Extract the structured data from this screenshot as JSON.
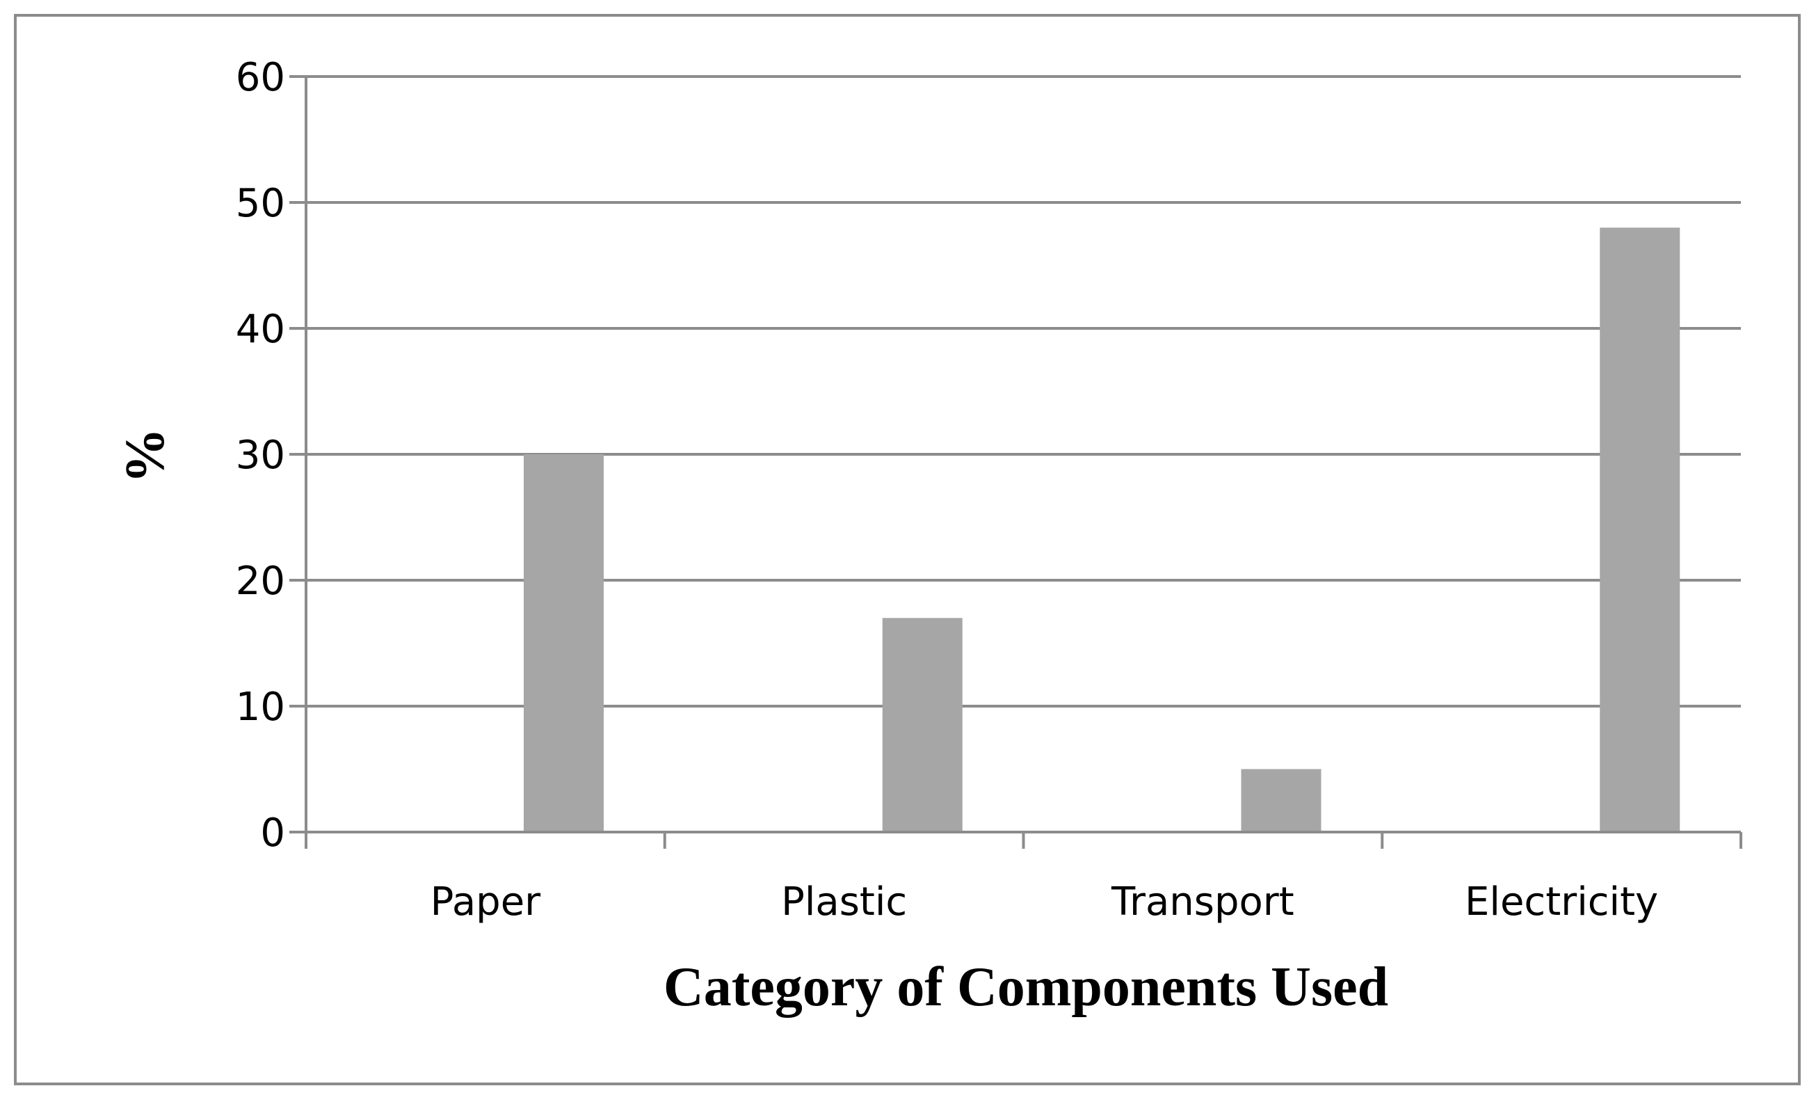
{
  "chart_data": {
    "type": "bar",
    "title": "",
    "xlabel": "Category of Components Used",
    "ylabel": "%",
    "categories": [
      "Paper",
      "Plastic",
      "Transport",
      "Electricity"
    ],
    "series": [
      {
        "values": [
          30,
          17,
          5,
          48
        ]
      }
    ],
    "ylim": [
      0,
      60
    ],
    "yticks": [
      "0",
      "10",
      "20",
      "30",
      "40",
      "50",
      "60"
    ],
    "grid": true,
    "legend": "none",
    "colors": {
      "bar": "#a6a6a6",
      "grid": "#8c8c8c",
      "axis": "#8c8c8c",
      "frame": "#8c8c8c"
    }
  }
}
